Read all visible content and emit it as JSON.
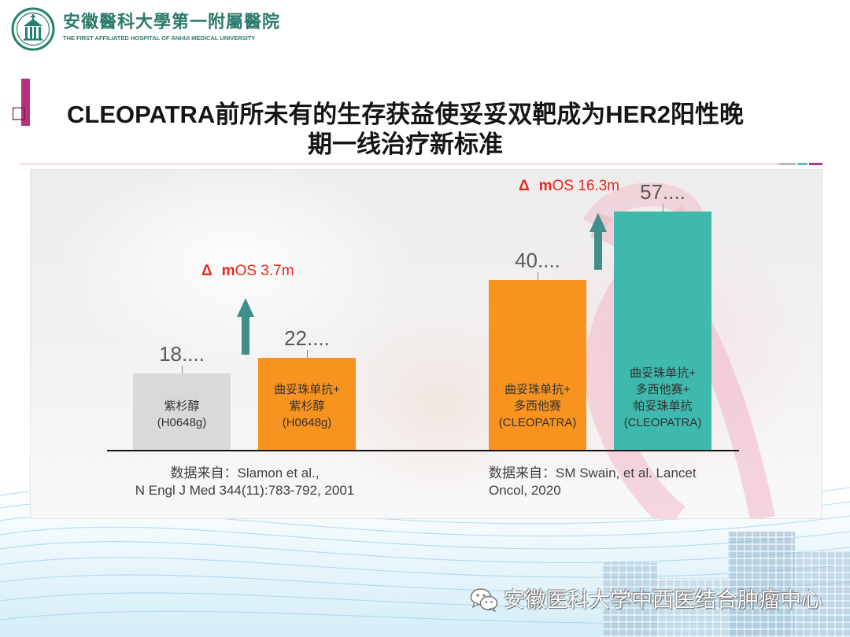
{
  "header": {
    "logo_icon": "hospital-emblem-icon",
    "hospital_name": "安徽醫科大學第一附屬醫院",
    "hospital_name_en": "THE FIRST AFFILIATED HOSPITAL OF ANHUI MEDICAL UNIVERSITY"
  },
  "title": {
    "bullet": "□",
    "lines": [
      "CLEOPATRA前所未有的生存获益使妥妥双靶成为HER2阳性晚",
      "期一线治疗新标准"
    ]
  },
  "colors": {
    "accent_magenta": "#b8307e",
    "bar_grey": "#d9d9d9",
    "bar_orange": "#f7931e",
    "bar_teal": "#3fb8ad",
    "arrow_teal": "#3e8f89",
    "delta_red": "#e8281c",
    "hospital_green": "#2b7b6b"
  },
  "chart_data": {
    "type": "bar",
    "categories": [
      [
        "紫杉醇",
        "(H0648g)"
      ],
      [
        "曲妥珠单抗+",
        "紫杉醇",
        "(H0648g)"
      ],
      [
        "曲妥珠单抗+",
        "多西他赛",
        "(CLEOPATRA)"
      ],
      [
        "曲妥珠单抗+",
        "多西他赛+",
        "帕妥珠单抗",
        "(CLEOPATRA)"
      ]
    ],
    "values": [
      18.4,
      22.1,
      40.8,
      57.1
    ],
    "value_labels": [
      "18....",
      "22....",
      "40....",
      "57...."
    ],
    "bar_colors": [
      "#d9d9d9",
      "#f7931e",
      "#f7931e",
      "#3fb8ad"
    ],
    "annotations": [
      {
        "symbol": "Δ",
        "bold": "m",
        "text": "OS 3.7m",
        "icon": "up-arrow-icon"
      },
      {
        "symbol": "Δ",
        "bold": "m",
        "text": "OS 16.3m",
        "icon": "up-arrow-icon"
      }
    ],
    "sources": [
      [
        "数据来自：Slamon et al.,",
        "N Engl J Med 344(11):783-792, 2001"
      ],
      [
        "数据来自：SM Swain, et al. Lancet",
        "Oncol, 2020"
      ]
    ],
    "grid": false
  },
  "watermark": {
    "icon": "wechat-icon",
    "text": "安徽医科大学中西医结合肿瘤中心"
  }
}
